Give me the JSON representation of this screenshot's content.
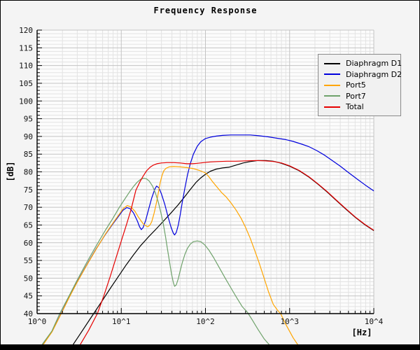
{
  "colors": {
    "background": "#f4f4f4",
    "plot_background": "#fcfcfc",
    "grid_minor": "#e3e3e3",
    "grid_major": "#c3c3c3",
    "axis": "#000000",
    "tick_label": "#111111",
    "legend_background": "#f1f1f1",
    "legend_border": "#8a8a8a",
    "bottom_bar": "#000000"
  },
  "chart_data": {
    "type": "line",
    "title": "Frequency Response",
    "xlabel": "[Hz]",
    "ylabel": "[dB]",
    "x_scale": "log",
    "xlim": [
      1,
      10000
    ],
    "ylim": [
      40,
      120
    ],
    "y_tick_step": 5,
    "y_minor_step": 1,
    "grid": true,
    "y_ticks": [
      120,
      115,
      110,
      105,
      100,
      95,
      90,
      85,
      80,
      75,
      70,
      65,
      60,
      55,
      50,
      45,
      40
    ],
    "x_ticks": [
      {
        "value": 1,
        "label": "10^0"
      },
      {
        "value": 10,
        "label": "10^1"
      },
      {
        "value": 100,
        "label": "10^2"
      },
      {
        "value": 1000,
        "label": "10^3"
      },
      {
        "value": 10000,
        "label": "10^4"
      }
    ],
    "legend_position": "upper right",
    "series": [
      {
        "name": "Diaphragm D1",
        "color": "#000000",
        "points": [
          [
            2.5,
            30.2
          ],
          [
            3.3,
            34.5
          ],
          [
            4.7,
            40
          ],
          [
            6,
            43.8
          ],
          [
            7.5,
            47.3
          ],
          [
            9.3,
            50.6
          ],
          [
            11.5,
            53.8
          ],
          [
            14,
            56.6
          ],
          [
            17,
            59.2
          ],
          [
            21,
            61.6
          ],
          [
            26,
            63.9
          ],
          [
            32,
            66.2
          ],
          [
            39,
            68.4
          ],
          [
            47,
            70.6
          ],
          [
            56,
            72.8
          ],
          [
            66,
            75
          ],
          [
            77,
            77
          ],
          [
            88,
            78.3
          ],
          [
            100,
            79.3
          ],
          [
            115,
            80.2
          ],
          [
            135,
            80.8
          ],
          [
            160,
            81.1
          ],
          [
            190,
            81.3
          ],
          [
            230,
            81.9
          ],
          [
            280,
            82.5
          ],
          [
            340,
            82.9
          ],
          [
            420,
            83.2
          ],
          [
            520,
            83.2
          ],
          [
            640,
            83
          ],
          [
            800,
            82.4
          ],
          [
            1000,
            81.6
          ],
          [
            1300,
            80.3
          ],
          [
            1700,
            78.5
          ],
          [
            2200,
            76.4
          ],
          [
            2800,
            74.3
          ],
          [
            3600,
            71.9
          ],
          [
            4600,
            69.6
          ],
          [
            6000,
            67.2
          ],
          [
            7800,
            65.1
          ],
          [
            10000,
            63.4
          ]
        ]
      },
      {
        "name": "Diaphragm D2",
        "color": "#0000dd",
        "points": [
          [
            1.1,
            30.3
          ],
          [
            1.5,
            34.9
          ],
          [
            1.9,
            39.7
          ],
          [
            2.4,
            44.6
          ],
          [
            3,
            49
          ],
          [
            3.9,
            53.8
          ],
          [
            5,
            58.2
          ],
          [
            6.5,
            62.4
          ],
          [
            8,
            65.4
          ],
          [
            9.5,
            67.8
          ],
          [
            10.5,
            69.2
          ],
          [
            11.6,
            69.9
          ],
          [
            12.8,
            69.6
          ],
          [
            14,
            68.4
          ],
          [
            15.5,
            66.2
          ],
          [
            16.5,
            64.5
          ],
          [
            17.3,
            63.7
          ],
          [
            18.2,
            64.3
          ],
          [
            19.5,
            66.3
          ],
          [
            21,
            69.2
          ],
          [
            23,
            72.6
          ],
          [
            25,
            75.1
          ],
          [
            26.3,
            76
          ],
          [
            28,
            75.5
          ],
          [
            30,
            73.8
          ],
          [
            33,
            70.7
          ],
          [
            36,
            67.3
          ],
          [
            39,
            64.4
          ],
          [
            41.5,
            62.7
          ],
          [
            43,
            62.2
          ],
          [
            45,
            62.9
          ],
          [
            47.5,
            64.9
          ],
          [
            50,
            67.7
          ],
          [
            53,
            71.3
          ],
          [
            57,
            75.4
          ],
          [
            61,
            79
          ],
          [
            66,
            82.3
          ],
          [
            72,
            85
          ],
          [
            80,
            87.2
          ],
          [
            88,
            88.5
          ],
          [
            100,
            89.4
          ],
          [
            115,
            89.8
          ],
          [
            135,
            90.1
          ],
          [
            160,
            90.3
          ],
          [
            200,
            90.4
          ],
          [
            260,
            90.4
          ],
          [
            340,
            90.4
          ],
          [
            430,
            90.2
          ],
          [
            550,
            89.9
          ],
          [
            700,
            89.5
          ],
          [
            900,
            89.1
          ],
          [
            1100,
            88.6
          ],
          [
            1400,
            87.8
          ],
          [
            1700,
            87.1
          ],
          [
            2100,
            86
          ],
          [
            2600,
            84.7
          ],
          [
            3200,
            83.2
          ],
          [
            4000,
            81.6
          ],
          [
            5000,
            79.8
          ],
          [
            6300,
            78
          ],
          [
            8000,
            76.2
          ],
          [
            10000,
            74.6
          ]
        ]
      },
      {
        "name": "Port5",
        "color": "#ffa500",
        "points": [
          [
            1.1,
            30.2
          ],
          [
            1.5,
            34.8
          ],
          [
            1.9,
            39.6
          ],
          [
            2.4,
            44.5
          ],
          [
            3,
            48.9
          ],
          [
            3.9,
            53.7
          ],
          [
            5,
            58.1
          ],
          [
            6.5,
            62.5
          ],
          [
            8,
            65.6
          ],
          [
            9.5,
            68.1
          ],
          [
            10.6,
            69.7
          ],
          [
            11.8,
            70.5
          ],
          [
            13,
            70.1
          ],
          [
            14.5,
            68.9
          ],
          [
            16,
            67.2
          ],
          [
            18,
            65.5
          ],
          [
            19.5,
            64.8
          ],
          [
            20.6,
            64.5
          ],
          [
            21.8,
            64.9
          ],
          [
            23,
            65.9
          ],
          [
            24.5,
            68.2
          ],
          [
            26,
            71
          ],
          [
            27.5,
            74
          ],
          [
            29,
            77
          ],
          [
            30.5,
            79
          ],
          [
            32,
            80.3
          ],
          [
            34,
            81
          ],
          [
            37,
            81.4
          ],
          [
            42,
            81.5
          ],
          [
            50,
            81.4
          ],
          [
            60,
            81.2
          ],
          [
            72,
            80.9
          ],
          [
            85,
            80.4
          ],
          [
            100,
            79.7
          ],
          [
            110,
            78.6
          ],
          [
            120,
            77.4
          ],
          [
            135,
            75.9
          ],
          [
            155,
            74.2
          ],
          [
            175,
            73
          ],
          [
            200,
            71.3
          ],
          [
            230,
            69.3
          ],
          [
            265,
            66.9
          ],
          [
            300,
            64.3
          ],
          [
            340,
            61.3
          ],
          [
            380,
            58.2
          ],
          [
            430,
            54.6
          ],
          [
            490,
            50.5
          ],
          [
            560,
            46.2
          ],
          [
            640,
            42.6
          ],
          [
            720,
            40.9
          ],
          [
            782,
            40
          ],
          [
            900,
            37
          ],
          [
            1100,
            33.2
          ],
          [
            1320,
            30.4
          ]
        ]
      },
      {
        "name": "Port7",
        "color": "#6fa26b",
        "points": [
          [
            1.08,
            30.4
          ],
          [
            1.5,
            35.1
          ],
          [
            1.86,
            40
          ],
          [
            2.4,
            45
          ],
          [
            3,
            49.5
          ],
          [
            3.9,
            54.5
          ],
          [
            5,
            59
          ],
          [
            6.5,
            63.6
          ],
          [
            8,
            67
          ],
          [
            9.5,
            70
          ],
          [
            11,
            72.3
          ],
          [
            12.5,
            74.3
          ],
          [
            14,
            75.9
          ],
          [
            15.5,
            77.1
          ],
          [
            17,
            77.9
          ],
          [
            18.5,
            78.2
          ],
          [
            20,
            78
          ],
          [
            21.5,
            77.4
          ],
          [
            23.5,
            76
          ],
          [
            25.5,
            74
          ],
          [
            27.5,
            71.5
          ],
          [
            29.5,
            68.6
          ],
          [
            31.5,
            65.4
          ],
          [
            33.5,
            61.8
          ],
          [
            35.5,
            58
          ],
          [
            37.5,
            54.5
          ],
          [
            39.5,
            51.2
          ],
          [
            41.5,
            48.8
          ],
          [
            43,
            47.7
          ],
          [
            45,
            48.1
          ],
          [
            47.5,
            49.8
          ],
          [
            50,
            52
          ],
          [
            53,
            54.3
          ],
          [
            57,
            56.7
          ],
          [
            61,
            58.4
          ],
          [
            66,
            59.6
          ],
          [
            72,
            60.3
          ],
          [
            80,
            60.5
          ],
          [
            88,
            60.3
          ],
          [
            98,
            59.4
          ],
          [
            110,
            57.9
          ],
          [
            125,
            55.8
          ],
          [
            145,
            53.1
          ],
          [
            170,
            50.2
          ],
          [
            200,
            47.3
          ],
          [
            235,
            44.5
          ],
          [
            275,
            41.9
          ],
          [
            315,
            40.4
          ],
          [
            360,
            38.2
          ],
          [
            420,
            35.6
          ],
          [
            500,
            32.8
          ],
          [
            620,
            30.3
          ]
        ]
      },
      {
        "name": "Total",
        "color": "#e60000",
        "points": [
          [
            3.1,
            30.4
          ],
          [
            4.1,
            35.3
          ],
          [
            5.2,
            40
          ],
          [
            6.2,
            45
          ],
          [
            7.4,
            50.5
          ],
          [
            8.6,
            55.5
          ],
          [
            10,
            60.5
          ],
          [
            11.5,
            65
          ],
          [
            13,
            69.2
          ],
          [
            14.9,
            74.8
          ],
          [
            16.5,
            77
          ],
          [
            18,
            78.6
          ],
          [
            20,
            80.3
          ],
          [
            22,
            81.3
          ],
          [
            24,
            81.9
          ],
          [
            26.5,
            82.3
          ],
          [
            30,
            82.5
          ],
          [
            35,
            82.6
          ],
          [
            42,
            82.6
          ],
          [
            50,
            82.5
          ],
          [
            60,
            82.3
          ],
          [
            70,
            82.3
          ],
          [
            80,
            82.4
          ],
          [
            95,
            82.6
          ],
          [
            115,
            82.8
          ],
          [
            140,
            82.9
          ],
          [
            180,
            83
          ],
          [
            230,
            83
          ],
          [
            300,
            83.1
          ],
          [
            400,
            83.2
          ],
          [
            520,
            83.1
          ],
          [
            650,
            82.9
          ],
          [
            800,
            82.5
          ],
          [
            1000,
            81.7
          ],
          [
            1300,
            80.4
          ],
          [
            1700,
            78.6
          ],
          [
            2200,
            76.5
          ],
          [
            2800,
            74.4
          ],
          [
            3600,
            72
          ],
          [
            4600,
            69.7
          ],
          [
            6000,
            67.3
          ],
          [
            7800,
            65.2
          ],
          [
            10000,
            63.5
          ]
        ]
      }
    ]
  }
}
